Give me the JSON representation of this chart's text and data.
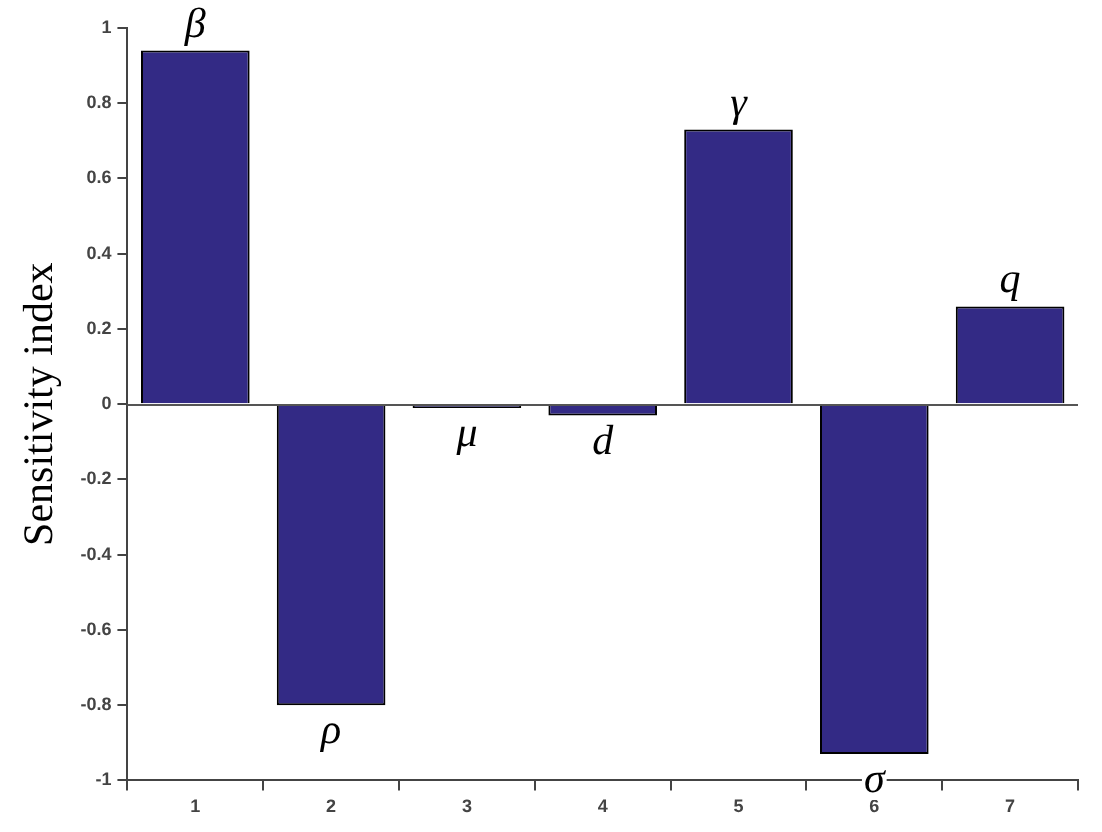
{
  "chart_data": {
    "type": "bar",
    "ylabel": "Sensitivity index",
    "categories": [
      "1",
      "2",
      "3",
      "4",
      "5",
      "6",
      "7"
    ],
    "values": [
      0.94,
      -0.8,
      -0.01,
      -0.03,
      0.73,
      -0.93,
      0.26
    ],
    "color": "#332a85",
    "ylim": [
      -1,
      1
    ],
    "yticks": [
      -1,
      -0.8,
      -0.6,
      -0.4,
      -0.2,
      0,
      0.2,
      0.4,
      0.6,
      0.8,
      1
    ],
    "grid": false,
    "legend": false,
    "ref_lines": [
      {
        "axis": "y",
        "value": 0,
        "color": "#555555"
      }
    ],
    "annotations": [
      {
        "text": "β",
        "x": "1",
        "y": 0.94
      },
      {
        "text": "ρ",
        "x": "2",
        "y": -0.8
      },
      {
        "text": "μ",
        "x": "3",
        "y": -0.01
      },
      {
        "text": "d",
        "x": "4",
        "y": -0.03
      },
      {
        "text": "γ",
        "x": "5",
        "y": 0.73
      },
      {
        "text": "σ",
        "x": "6",
        "y": -0.93
      },
      {
        "text": "q",
        "x": "7",
        "y": 0.26
      }
    ]
  }
}
